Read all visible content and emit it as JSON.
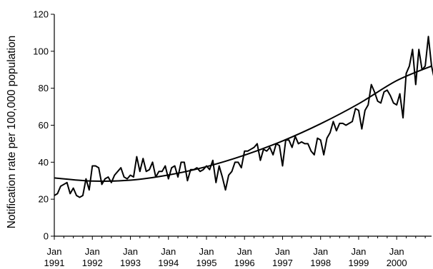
{
  "chart_data": {
    "type": "line",
    "title": "",
    "xlabel": "",
    "ylabel": "Notification rate per 100,000 population",
    "ylim": [
      0,
      120
    ],
    "yticks": [
      0,
      20,
      40,
      60,
      80,
      100,
      120
    ],
    "xlim": [
      1991.0,
      2000.917
    ],
    "xtick_labels": [
      {
        "year": 1991,
        "month": "Jan",
        "label": "1991"
      },
      {
        "year": 1992,
        "month": "Jan",
        "label": "1992"
      },
      {
        "year": 1993,
        "month": "Jan",
        "label": "1993"
      },
      {
        "year": 1994,
        "month": "Jan",
        "label": "1994"
      },
      {
        "year": 1995,
        "month": "Jan",
        "label": "1995"
      },
      {
        "year": 1996,
        "month": "Jan",
        "label": "1996"
      },
      {
        "year": 1997,
        "month": "Jan",
        "label": "1997"
      },
      {
        "year": 1998,
        "month": "Jan",
        "label": "1998"
      },
      {
        "year": 1999,
        "month": "Jan",
        "label": "1999"
      },
      {
        "year": 2000,
        "month": "Jan",
        "label": "2000"
      }
    ],
    "grid": false,
    "legend": "none",
    "colors": {
      "series": "#000000",
      "trend": "#000000",
      "axis": "#000000"
    },
    "series": [
      {
        "values": [
          22,
          23,
          27,
          28,
          29,
          23,
          26,
          22,
          21,
          22,
          31,
          25,
          38,
          38,
          37,
          28,
          31,
          32,
          29,
          33,
          35,
          37,
          32,
          31,
          33,
          32,
          43,
          35,
          42,
          35,
          36,
          40,
          32,
          35,
          35,
          38,
          31,
          37,
          38,
          32,
          40,
          40,
          30,
          36,
          36,
          37,
          35,
          36,
          38,
          36,
          41,
          29,
          38,
          32,
          25,
          33,
          35,
          40,
          40,
          37,
          46,
          46,
          47,
          48,
          50,
          41,
          47,
          46,
          48,
          44,
          50,
          49,
          38,
          52,
          52,
          48,
          54,
          50,
          51,
          50,
          50,
          46,
          44,
          53,
          52,
          44,
          53,
          56,
          62,
          57,
          61,
          61,
          60,
          61,
          62,
          69,
          68,
          58,
          68,
          71,
          82,
          78,
          73,
          72,
          78,
          79,
          76,
          72,
          71,
          77,
          64,
          88,
          92,
          101,
          82,
          101,
          90,
          92,
          108,
          92,
          84
        ]
      }
    ],
    "trend": {
      "label": "",
      "kind": "quadratic fit",
      "points": [
        {
          "x": 1991.0,
          "y": 31.5
        },
        {
          "x": 1992.0,
          "y": 29.8
        },
        {
          "x": 1993.0,
          "y": 30.3
        },
        {
          "x": 1994.0,
          "y": 33.1
        },
        {
          "x": 1995.0,
          "y": 37.6
        },
        {
          "x": 1996.0,
          "y": 43.8
        },
        {
          "x": 1997.0,
          "y": 51.5
        },
        {
          "x": 1998.0,
          "y": 60.8
        },
        {
          "x": 1999.0,
          "y": 71.6
        },
        {
          "x": 2000.0,
          "y": 84.1
        },
        {
          "x": 2000.917,
          "y": 92.0
        }
      ]
    }
  }
}
